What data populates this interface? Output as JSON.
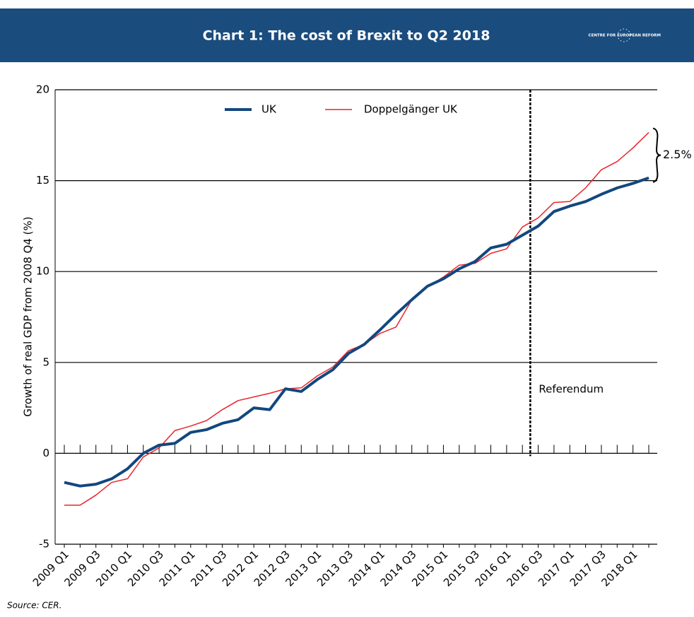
{
  "chart_data": {
    "type": "line",
    "title": "Chart 1: The cost of Brexit to Q2 2018",
    "logo": "CENTRE FOR EUROPEAN REFORM",
    "ylabel": "Growth of real GDP from 2008 Q4 (%)",
    "source": "Source: CER.",
    "annotations": {
      "referendum": "Referendum",
      "gap": "2.5%"
    },
    "categories": [
      "2009 Q1",
      null,
      "2009 Q3",
      null,
      "2010 Q1",
      null,
      "2010 Q3",
      null,
      "2011 Q1",
      null,
      "2011 Q3",
      null,
      "2012 Q1",
      null,
      "2012 Q3",
      null,
      "2013 Q1",
      null,
      "2013 Q3",
      null,
      "2014 Q1",
      null,
      "2014 Q3",
      null,
      "2015 Q1",
      null,
      "2015 Q3",
      null,
      "2016 Q1",
      null,
      "2016 Q3",
      null,
      "2017 Q1",
      null,
      "2017 Q3",
      null,
      "2018 Q1",
      null
    ],
    "series": [
      {
        "name": "UK",
        "color": "#13477e",
        "width": 4,
        "values": [
          -1.6,
          -1.8,
          -1.7,
          -1.4,
          -0.85,
          0.0,
          0.45,
          0.55,
          1.15,
          1.3,
          1.65,
          1.85,
          2.5,
          2.4,
          3.55,
          3.4,
          4.05,
          4.6,
          5.5,
          6.0,
          6.8,
          7.65,
          8.45,
          9.2,
          9.6,
          10.15,
          10.55,
          11.3,
          11.5,
          12.0,
          12.5,
          13.3,
          13.6,
          13.85,
          14.25,
          14.6,
          14.85,
          15.15
        ]
      },
      {
        "name": "Doppelgänger UK",
        "color": "#e8242b",
        "width": 1.5,
        "values": [
          -2.85,
          -2.85,
          -2.3,
          -1.6,
          -1.4,
          -0.2,
          0.3,
          1.25,
          1.5,
          1.8,
          2.4,
          2.9,
          3.1,
          3.3,
          3.55,
          3.6,
          4.25,
          4.75,
          5.65,
          6.0,
          6.6,
          6.95,
          8.45,
          9.15,
          9.7,
          10.35,
          10.45,
          11.0,
          11.25,
          12.45,
          12.95,
          13.8,
          13.85,
          14.6,
          15.6,
          16.05,
          16.8,
          17.65
        ]
      }
    ],
    "ylim": [
      -5,
      20
    ],
    "yticks": [
      -5,
      0,
      5,
      10,
      15,
      20
    ],
    "grid": true
  }
}
